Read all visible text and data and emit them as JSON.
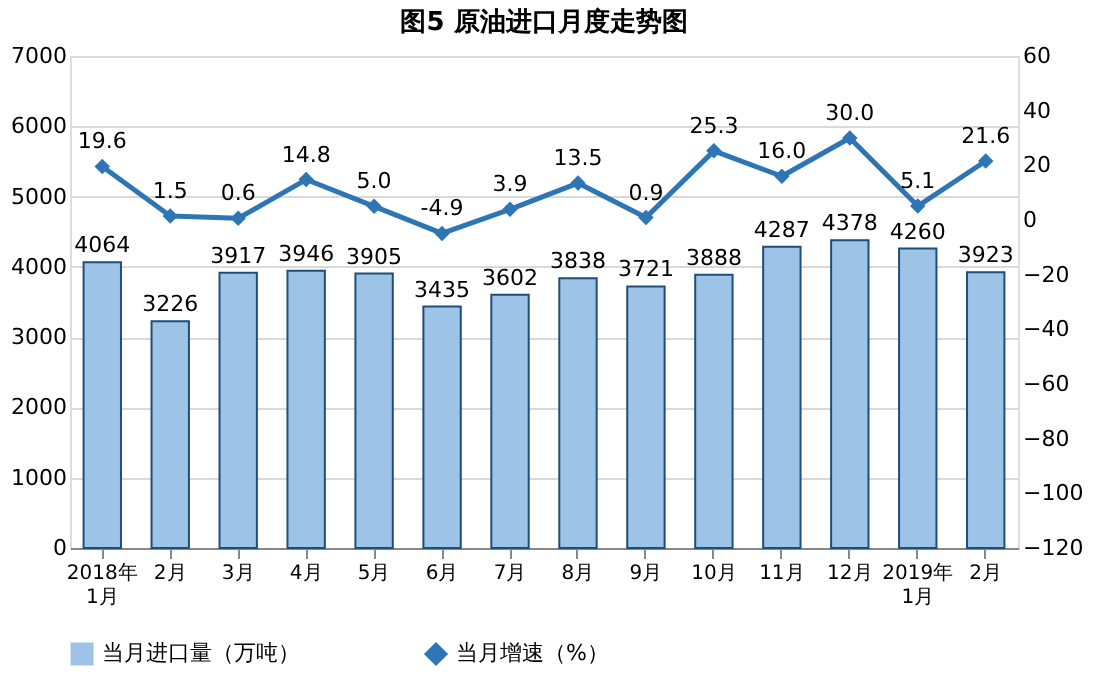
{
  "chart_data": {
    "type": "bar",
    "title": "图5  原油进口月度走势图",
    "categories": [
      "2018年\n1月",
      "2月",
      "3月",
      "4月",
      "5月",
      "6月",
      "7月",
      "8月",
      "9月",
      "10月",
      "11月",
      "12月",
      "2019年\n1月",
      "2月"
    ],
    "series": [
      {
        "name": "当月进口量（万吨）",
        "color": "#9dc3e6",
        "values": [
          4064,
          3226,
          3917,
          3946,
          3905,
          3435,
          3602,
          3838,
          3721,
          3888,
          4287,
          4378,
          4260,
          3923
        ],
        "value_labels": [
          "4064",
          "3226",
          "3917",
          "3946",
          "3905",
          "3435",
          "3602",
          "3838",
          "3721",
          "3888",
          "4287",
          "4378",
          "4260",
          "3923"
        ]
      },
      {
        "name": "当月增速（%）",
        "type": "line",
        "axis": "y2",
        "color": "#2e75b6",
        "marker": "diamond",
        "line_style": "solid",
        "values": [
          19.6,
          1.5,
          0.6,
          14.8,
          5.0,
          -4.9,
          3.9,
          13.5,
          0.9,
          25.3,
          16.0,
          30.0,
          5.1,
          21.6
        ],
        "value_labels": [
          "19.6",
          "1.5",
          "0.6",
          "14.8",
          "5.0",
          "-4.9",
          "3.9",
          "13.5",
          "0.9",
          "25.3",
          "16.0",
          "30.0",
          "5.1",
          "21.6"
        ]
      }
    ],
    "ylim": [
      0,
      7000
    ],
    "yticks": [
      0,
      1000,
      2000,
      3000,
      4000,
      5000,
      6000,
      7000
    ],
    "y2lim": [
      -120,
      60
    ],
    "y2ticks": [
      -120,
      -100,
      -80,
      -60,
      -40,
      -20,
      0,
      20,
      40,
      60
    ],
    "grid": "y",
    "legend": "bottom"
  }
}
